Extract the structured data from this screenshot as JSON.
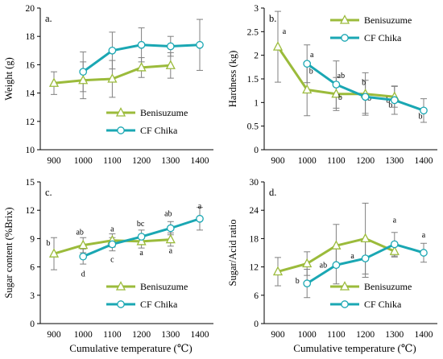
{
  "colors": {
    "benisuzume": "#9bbb3b",
    "cf_chika": "#1aa7b3",
    "error": "#808080",
    "axis": "#000000"
  },
  "chart_data": [
    {
      "type": "line",
      "panel_label": "a.",
      "xlabel": "",
      "ylabel": "Weight (g)",
      "x": [
        900,
        1000,
        1100,
        1200,
        1300,
        1400
      ],
      "ylim": [
        10,
        20
      ],
      "yticks": [
        10,
        12,
        14,
        16,
        18,
        20
      ],
      "grid": false,
      "legend_position": "bottom-right",
      "series": [
        {
          "name": "Benisuzume",
          "marker": "triangle",
          "color": "#9bbb3b",
          "points": [
            {
              "x": 900,
              "y": 14.7,
              "err": 0.8,
              "label": ""
            },
            {
              "x": 1000,
              "y": 14.9,
              "err": 1.3,
              "label": ""
            },
            {
              "x": 1100,
              "y": 15.0,
              "err": 1.3,
              "label": ""
            },
            {
              "x": 1200,
              "y": 15.8,
              "err": 0.7,
              "label": ""
            },
            {
              "x": 1300,
              "y": 15.95,
              "err": 0.9,
              "label": ""
            }
          ]
        },
        {
          "name": "CF Chika",
          "marker": "circle",
          "color": "#1aa7b3",
          "points": [
            {
              "x": 1000,
              "y": 15.5,
              "err": 1.4,
              "label": ""
            },
            {
              "x": 1100,
              "y": 17.0,
              "err": 1.3,
              "label": ""
            },
            {
              "x": 1200,
              "y": 17.4,
              "err": 1.2,
              "label": ""
            },
            {
              "x": 1300,
              "y": 17.3,
              "err": 0.7,
              "label": ""
            },
            {
              "x": 1400,
              "y": 17.4,
              "err": 1.8,
              "label": ""
            }
          ]
        }
      ]
    },
    {
      "type": "line",
      "panel_label": "b.",
      "xlabel": "",
      "ylabel": "Hardness (kg)",
      "x": [
        900,
        1000,
        1100,
        1200,
        1300,
        1400
      ],
      "ylim": [
        0,
        3
      ],
      "yticks": [
        0,
        0.5,
        1,
        1.5,
        2,
        2.5,
        3
      ],
      "grid": false,
      "legend_position": "top-right",
      "series": [
        {
          "name": "Benisuzume",
          "marker": "triangle",
          "color": "#9bbb3b",
          "points": [
            {
              "x": 900,
              "y": 2.18,
              "err": 0.75,
              "label": "a"
            },
            {
              "x": 1000,
              "y": 1.27,
              "err": 0.55,
              "label": "b"
            },
            {
              "x": 1100,
              "y": 1.18,
              "err": 0.35,
              "label": "b"
            },
            {
              "x": 1200,
              "y": 1.18,
              "err": 0.45,
              "label": "b"
            },
            {
              "x": 1300,
              "y": 1.12,
              "err": 0.22,
              "label": "b"
            }
          ]
        },
        {
          "name": "CF Chika",
          "marker": "circle",
          "color": "#1aa7b3",
          "points": [
            {
              "x": 1000,
              "y": 1.82,
              "err": 0.4,
              "label": "a"
            },
            {
              "x": 1100,
              "y": 1.38,
              "err": 0.5,
              "label": "ab"
            },
            {
              "x": 1200,
              "y": 1.12,
              "err": 0.35,
              "label": "b"
            },
            {
              "x": 1300,
              "y": 1.05,
              "err": 0.3,
              "label": "b"
            },
            {
              "x": 1400,
              "y": 0.83,
              "err": 0.25,
              "label": "b"
            }
          ]
        }
      ]
    },
    {
      "type": "line",
      "panel_label": "c.",
      "xlabel": "Cumulative temperature (℃)",
      "ylabel": "Sugar content (%Brix)",
      "x": [
        900,
        1000,
        1100,
        1200,
        1300,
        1400
      ],
      "ylim": [
        0,
        15
      ],
      "yticks": [
        0,
        3,
        6,
        9,
        12,
        15
      ],
      "grid": false,
      "legend_position": "bottom-right",
      "series": [
        {
          "name": "Benisuzume",
          "marker": "triangle",
          "color": "#9bbb3b",
          "points": [
            {
              "x": 900,
              "y": 7.4,
              "err": 1.7,
              "label": "b"
            },
            {
              "x": 1000,
              "y": 8.3,
              "err": 0.8,
              "label": "ab"
            },
            {
              "x": 1100,
              "y": 8.8,
              "err": 0.7,
              "label": "a"
            },
            {
              "x": 1200,
              "y": 8.7,
              "err": 0.7,
              "label": "a"
            },
            {
              "x": 1300,
              "y": 8.9,
              "err": 0.7,
              "label": "a"
            }
          ]
        },
        {
          "name": "CF Chika",
          "marker": "circle",
          "color": "#1aa7b3",
          "points": [
            {
              "x": 1000,
              "y": 7.1,
              "err": 0.8,
              "label": "d"
            },
            {
              "x": 1100,
              "y": 8.4,
              "err": 0.7,
              "label": "c"
            },
            {
              "x": 1200,
              "y": 9.2,
              "err": 0.7,
              "label": "bc"
            },
            {
              "x": 1300,
              "y": 10.1,
              "err": 0.7,
              "label": "ab"
            },
            {
              "x": 1400,
              "y": 11.1,
              "err": 1.2,
              "label": "a"
            }
          ]
        }
      ]
    },
    {
      "type": "line",
      "panel_label": "d.",
      "xlabel": "Cumulative temperature (℃)",
      "ylabel": "Sugar/Acid ratio",
      "x": [
        900,
        1000,
        1100,
        1200,
        1300,
        1400
      ],
      "ylim": [
        0,
        30
      ],
      "yticks": [
        0,
        6,
        12,
        18,
        24,
        30
      ],
      "grid": false,
      "legend_position": "bottom-right",
      "series": [
        {
          "name": "Benisuzume",
          "marker": "triangle",
          "color": "#9bbb3b",
          "points": [
            {
              "x": 900,
              "y": 11.0,
              "err": 3.0,
              "label": ""
            },
            {
              "x": 1000,
              "y": 12.7,
              "err": 2.5,
              "label": ""
            },
            {
              "x": 1100,
              "y": 16.5,
              "err": 4.5,
              "label": ""
            },
            {
              "x": 1200,
              "y": 18.0,
              "err": 7.5,
              "label": ""
            },
            {
              "x": 1300,
              "y": 15.3,
              "err": 1.2,
              "label": ""
            }
          ]
        },
        {
          "name": "CF Chika",
          "marker": "circle",
          "color": "#1aa7b3",
          "points": [
            {
              "x": 1000,
              "y": 8.5,
              "err": 3.0,
              "label": "b"
            },
            {
              "x": 1100,
              "y": 12.4,
              "err": 4.0,
              "label": "ab"
            },
            {
              "x": 1200,
              "y": 13.8,
              "err": 4.0,
              "label": "a"
            },
            {
              "x": 1300,
              "y": 16.8,
              "err": 2.5,
              "label": "a"
            },
            {
              "x": 1400,
              "y": 15.0,
              "err": 2.0,
              "label": "a"
            }
          ]
        }
      ]
    }
  ]
}
